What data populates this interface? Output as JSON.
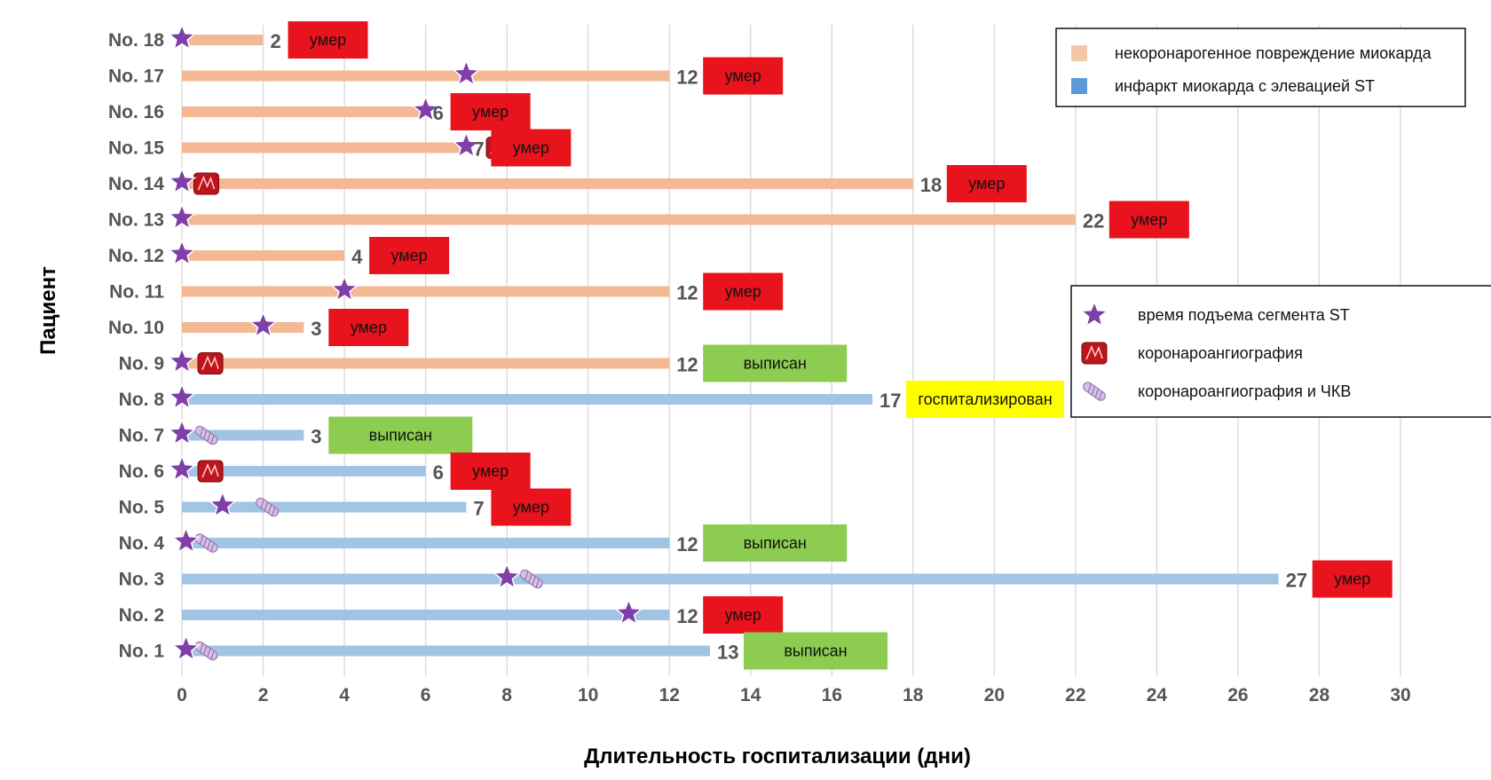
{
  "chart_data": {
    "type": "bar",
    "orientation": "horizontal",
    "xlabel": "Длительность госпитализации (дни)",
    "ylabel": "Пациент",
    "xlim": [
      0,
      30
    ],
    "xticks": [
      0,
      2,
      4,
      6,
      8,
      10,
      12,
      14,
      16,
      18,
      20,
      22,
      24,
      26,
      28,
      30
    ],
    "grid": true,
    "colors": {
      "non_coronary": "#f4b994",
      "stemi": "#a2c4e4",
      "died": "#e8131c",
      "discharged": "#8ccc50",
      "hospitalized": "#ffff00",
      "star": "#7e3fa8"
    },
    "legends": [
      {
        "placement": "top-right",
        "entries": [
          {
            "label": "некоронарогенное повреждение миокарда",
            "color": "#f4c7a7",
            "symbol": "square"
          },
          {
            "label": "инфаркт миокарда с элевацией ST",
            "color": "#5b9bd5",
            "symbol": "square"
          }
        ]
      },
      {
        "placement": "right",
        "entries": [
          {
            "label": "время подъема сегмента ST",
            "symbol": "star-icon"
          },
          {
            "label": "коронароангиография",
            "symbol": "angiography-icon"
          },
          {
            "label": "коронароангиография и ЧКВ",
            "symbol": "pci-icon"
          }
        ]
      }
    ],
    "patients": [
      {
        "name": "No. 18",
        "group": "non_coronary",
        "days": 2,
        "label": "2",
        "st": 0,
        "angio": null,
        "pci": null,
        "outcome": "умер",
        "outcome_type": "died"
      },
      {
        "name": "No. 17",
        "group": "non_coronary",
        "days": 12,
        "label": "12",
        "st": 7,
        "angio": null,
        "pci": null,
        "outcome": "умер",
        "outcome_type": "died"
      },
      {
        "name": "No. 16",
        "group": "non_coronary",
        "days": 6,
        "label": "6",
        "st": 6,
        "angio": null,
        "pci": null,
        "outcome": "умер",
        "outcome_type": "died"
      },
      {
        "name": "No. 15",
        "group": "non_coronary",
        "days": 7,
        "label": "7",
        "st": 7,
        "angio": 7.8,
        "pci": null,
        "outcome": "умер",
        "outcome_type": "died"
      },
      {
        "name": "No. 14",
        "group": "non_coronary",
        "days": 18,
        "label": "18",
        "st": 0,
        "angio": 0.6,
        "pci": null,
        "outcome": "умер",
        "outcome_type": "died"
      },
      {
        "name": "No. 13",
        "group": "non_coronary",
        "days": 22,
        "label": "22",
        "st": 0,
        "angio": null,
        "pci": null,
        "outcome": "умер",
        "outcome_type": "died"
      },
      {
        "name": "No. 12",
        "group": "non_coronary",
        "days": 4,
        "label": "4",
        "st": 0,
        "angio": null,
        "pci": null,
        "outcome": "умер",
        "outcome_type": "died"
      },
      {
        "name": "No. 11",
        "group": "non_coronary",
        "days": 12,
        "label": "12",
        "st": 4,
        "angio": null,
        "pci": null,
        "outcome": "умер",
        "outcome_type": "died"
      },
      {
        "name": "No. 10",
        "group": "non_coronary",
        "days": 3,
        "label": "3",
        "st": 2,
        "angio": null,
        "pci": null,
        "outcome": "умер",
        "outcome_type": "died"
      },
      {
        "name": "No. 9",
        "group": "non_coronary",
        "days": 12,
        "label": "12",
        "st": 0,
        "angio": 0.7,
        "pci": null,
        "outcome": "выписан",
        "outcome_type": "discharged"
      },
      {
        "name": "No. 8",
        "group": "stemi",
        "days": 17,
        "label": "17",
        "st": 0,
        "angio": null,
        "pci": null,
        "outcome": "госпитализирован",
        "outcome_type": "hospitalized"
      },
      {
        "name": "No. 7",
        "group": "stemi",
        "days": 3,
        "label": "3",
        "st": 0,
        "angio": null,
        "pci": 0.6,
        "outcome": "выписан",
        "outcome_type": "discharged"
      },
      {
        "name": "No. 6",
        "group": "stemi",
        "days": 6,
        "label": "6",
        "st": 0,
        "angio": 0.7,
        "pci": null,
        "outcome": "умер",
        "outcome_type": "died"
      },
      {
        "name": "No. 5",
        "group": "stemi",
        "days": 7,
        "label": "7",
        "st": 1,
        "angio": null,
        "pci": 2.1,
        "outcome": "умер",
        "outcome_type": "died"
      },
      {
        "name": "No. 4",
        "group": "stemi",
        "days": 12,
        "label": "12",
        "st": 0.1,
        "angio": null,
        "pci": 0.6,
        "outcome": "выписан",
        "outcome_type": "discharged"
      },
      {
        "name": "No. 3",
        "group": "stemi",
        "days": 27,
        "label": "27",
        "st": 8,
        "angio": null,
        "pci": 8.6,
        "outcome": "умер",
        "outcome_type": "died"
      },
      {
        "name": "No. 2",
        "group": "stemi",
        "days": 12,
        "label": "12",
        "st": 11,
        "angio": null,
        "pci": null,
        "outcome": "умер",
        "outcome_type": "died"
      },
      {
        "name": "No. 1",
        "group": "stemi",
        "days": 13,
        "label": "13",
        "st": 0.1,
        "angio": null,
        "pci": 0.6,
        "outcome": "выписан",
        "outcome_type": "discharged"
      }
    ]
  }
}
